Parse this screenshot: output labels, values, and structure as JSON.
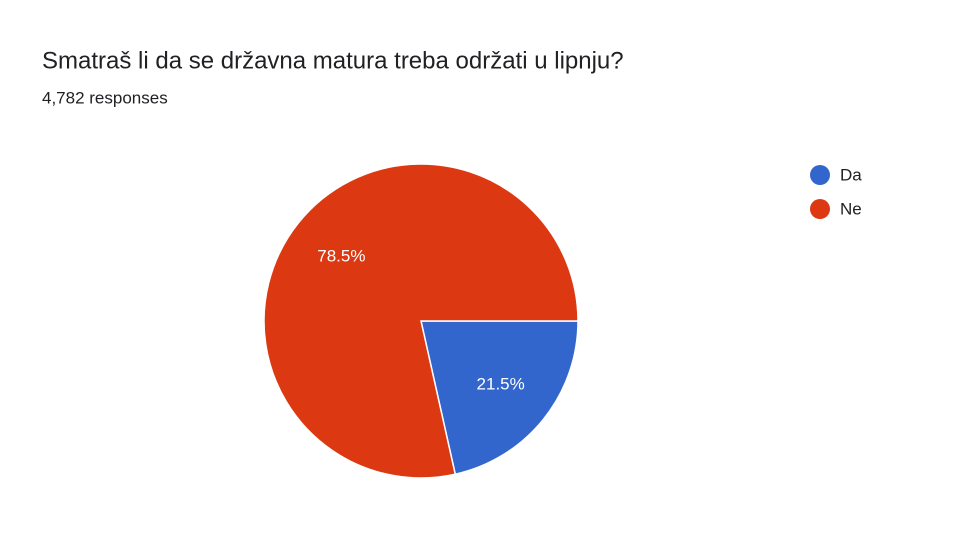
{
  "chart_data": {
    "type": "pie",
    "title": "Smatraš li da se državna matura treba održati u lipnju?",
    "subtitle": "4,782 responses",
    "categories": [
      "Da",
      "Ne"
    ],
    "values": [
      21.5,
      78.5
    ],
    "value_labels": [
      "21.5%",
      "78.5%"
    ],
    "colors": [
      "#3366cc",
      "#dc3912"
    ],
    "legend": "right"
  }
}
